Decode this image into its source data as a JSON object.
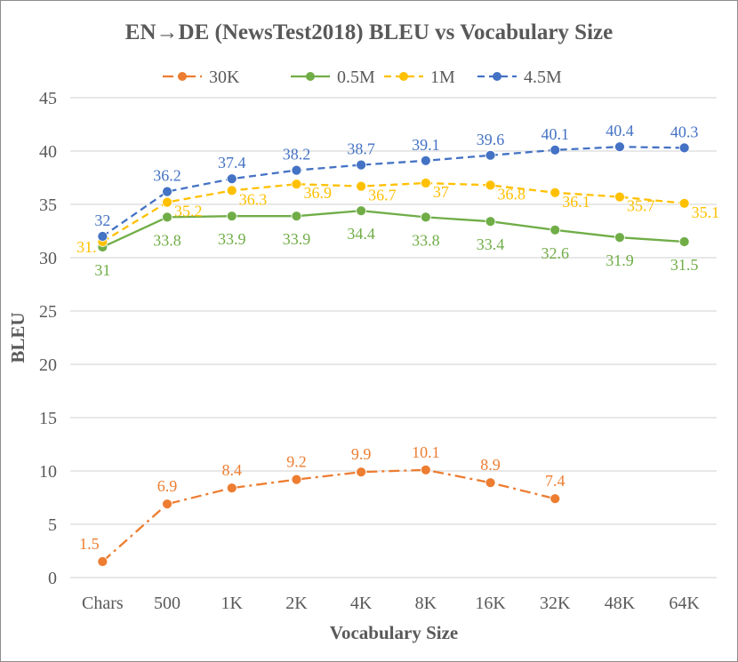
{
  "chart_data": {
    "type": "line",
    "title": "EN→DE (NewsTest2018) BLEU vs Vocabulary Size",
    "xlabel": "Vocabulary Size",
    "ylabel": "BLEU",
    "ylim": [
      0,
      45
    ],
    "yticks": [
      "0",
      "5",
      "10",
      "15",
      "20",
      "25",
      "30",
      "35",
      "40",
      "45"
    ],
    "grid": true,
    "legend_position": "top",
    "categories": [
      "Chars",
      "500",
      "1K",
      "2K",
      "4K",
      "8K",
      "16K",
      "32K",
      "48K",
      "64K"
    ],
    "series": [
      {
        "name": "30K",
        "color": "#ED7D31",
        "dash": "dashdot",
        "values": [
          1.5,
          6.9,
          8.4,
          9.2,
          9.9,
          10.1,
          8.9,
          7.4,
          null,
          null
        ],
        "labels": [
          "1.5",
          "6.9",
          "8.4",
          "9.2",
          "9.9",
          "10.1",
          "8.9",
          "7.4",
          null,
          null
        ]
      },
      {
        "name": "0.5M",
        "color": "#70AD47",
        "dash": "solid",
        "values": [
          31,
          33.8,
          33.9,
          33.9,
          34.4,
          33.8,
          33.4,
          32.6,
          31.9,
          31.5
        ],
        "labels": [
          "31",
          "33.8",
          "33.9",
          "33.9",
          "34.4",
          "33.8",
          "33.4",
          "32.6",
          "31.9",
          "31.5"
        ]
      },
      {
        "name": "1M",
        "color": "#FFC000",
        "dash": "dash",
        "values": [
          31.5,
          35.2,
          36.3,
          36.9,
          36.7,
          37,
          36.8,
          36.1,
          35.7,
          35.1
        ],
        "labels": [
          "31.",
          "35.2",
          "36.3",
          "36.9",
          "36.7",
          "37",
          "36.8",
          "36.1",
          "35.7",
          "35.1"
        ]
      },
      {
        "name": "4.5M",
        "color": "#4472C4",
        "dash": "dash",
        "values": [
          32,
          36.2,
          37.4,
          38.2,
          38.7,
          39.1,
          39.6,
          40.1,
          40.4,
          40.3
        ],
        "labels": [
          "32",
          "36.2",
          "37.4",
          "38.2",
          "38.7",
          "39.1",
          "39.6",
          "40.1",
          "40.4",
          "40.3"
        ]
      }
    ]
  }
}
